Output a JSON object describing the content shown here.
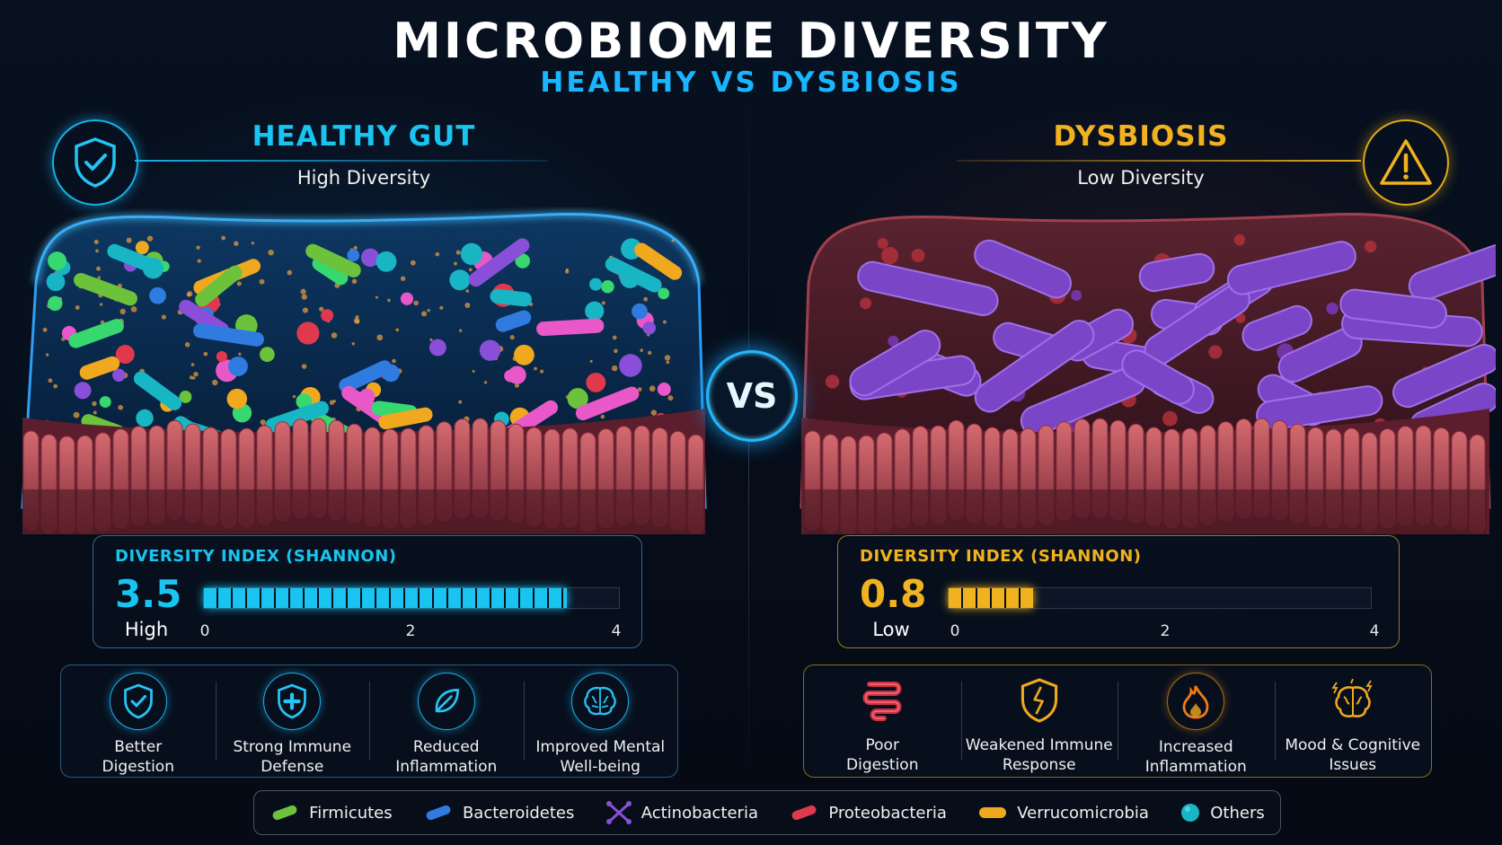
{
  "header": {
    "title": "MICROBIOME DIVERSITY",
    "subtitle": "HEALTHY  VS DYSBIOSIS"
  },
  "colors": {
    "healthy": "#19c4f0",
    "dysbiosis": "#f0b21e",
    "vs": "#1fb8ff"
  },
  "healthy": {
    "title": "HEALTHY GUT",
    "subtitle": "High Diversity",
    "badge_icon": "shield-check-icon",
    "index": {
      "label": "DIVERSITY INDEX (SHANNON)",
      "value": "3.5",
      "level": "High",
      "fill_value": 3.5,
      "scale_max": 4,
      "ticks": [
        "0",
        "2",
        "4"
      ]
    },
    "benefits": [
      {
        "icon": "shield-check-icon",
        "line1": "Better",
        "line2": "Digestion"
      },
      {
        "icon": "shield-plus-icon",
        "line1": "Strong Immune",
        "line2": "Defense"
      },
      {
        "icon": "leaf-icon",
        "line1": "Reduced",
        "line2": "Inflammation"
      },
      {
        "icon": "brain-icon",
        "line1": "Improved Mental",
        "line2": "Well-being"
      }
    ]
  },
  "dysbiosis": {
    "title": "DYSBIOSIS",
    "subtitle": "Low Diversity",
    "badge_icon": "warning-icon",
    "index": {
      "label": "DIVERSITY INDEX (SHANNON)",
      "value": "0.8",
      "level": "Low",
      "fill_value": 0.8,
      "scale_max": 4,
      "ticks": [
        "0",
        "2",
        "4"
      ]
    },
    "effects": [
      {
        "icon": "intestine-icon",
        "line1": "Poor",
        "line2": "Digestion"
      },
      {
        "icon": "broken-shield-icon",
        "line1": "Weakened Immune",
        "line2": "Response"
      },
      {
        "icon": "flame-icon",
        "line1": "Increased",
        "line2": "Inflammation"
      },
      {
        "icon": "brain-lightning-icon",
        "line1": "Mood & Cognitive",
        "line2": "Issues"
      }
    ]
  },
  "vs_label": "VS",
  "legend": [
    {
      "label": "Firmicutes",
      "color": "#6cc23a",
      "icon": "rod-bacteria-icon"
    },
    {
      "label": "Bacteroidetes",
      "color": "#2f7be0",
      "icon": "rod-bacteria-icon"
    },
    {
      "label": "Actinobacteria",
      "color": "#8a4fd8",
      "icon": "branched-bacteria-icon"
    },
    {
      "label": "Proteobacteria",
      "color": "#e0394e",
      "icon": "rod-bacteria-icon"
    },
    {
      "label": "Verrucomicrobia",
      "color": "#f0a81e",
      "icon": "rod-bacteria-icon"
    },
    {
      "label": "Others",
      "color": "#18b5c4",
      "icon": "coccus-icon"
    }
  ]
}
